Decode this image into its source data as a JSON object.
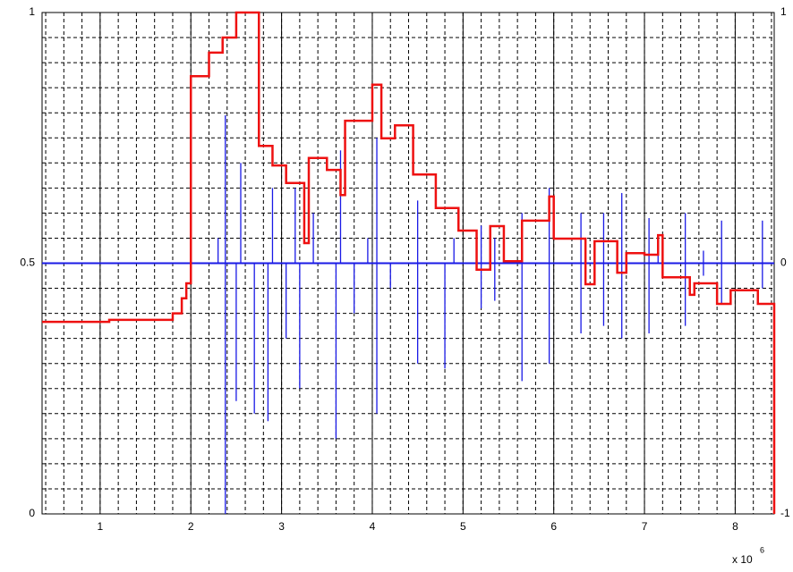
{
  "chart_data": {
    "type": "step-stem",
    "x_label": "x 10",
    "x_label_exponent": "6",
    "xlim": [
      0.36,
      8.43
    ],
    "xticks": [
      1,
      2,
      3,
      4,
      5,
      6,
      7,
      8
    ],
    "ylim": [
      0,
      1
    ],
    "yticks": [
      0,
      0.5,
      1
    ],
    "y2lim": [
      -1,
      1
    ],
    "y2ticks": [
      -1,
      0,
      1
    ],
    "grid": true,
    "minor_grid": true,
    "series": [
      {
        "type": "step",
        "color": "#ee1111",
        "x": [
          0.36,
          1.1,
          1.8,
          1.9,
          1.95,
          2.0,
          2.2,
          2.35,
          2.5,
          2.75,
          2.9,
          3.05,
          3.25,
          3.3,
          3.5,
          3.65,
          3.7,
          4.0,
          4.1,
          4.25,
          4.45,
          4.7,
          4.95,
          5.15,
          5.3,
          5.45,
          5.65,
          5.95,
          6.0,
          6.35,
          6.45,
          6.7,
          6.8,
          7.0,
          7.15,
          7.2,
          7.5,
          7.55,
          7.8,
          7.95,
          8.25,
          8.43
        ],
        "values": [
          0.383,
          0.387,
          0.4,
          0.43,
          0.46,
          0.873,
          0.92,
          0.95,
          1.0,
          0.734,
          0.695,
          0.66,
          0.54,
          0.71,
          0.686,
          0.636,
          0.784,
          0.856,
          0.749,
          0.775,
          0.677,
          0.61,
          0.565,
          0.487,
          0.574,
          0.504,
          0.585,
          0.633,
          0.549,
          0.458,
          0.544,
          0.481,
          0.52,
          0.517,
          0.556,
          0.472,
          0.437,
          0.46,
          0.419,
          0.446,
          0.419,
          0
        ]
      },
      {
        "type": "stem",
        "axis": "y2",
        "color": "#1a1ae6",
        "x": [
          2.3,
          2.38,
          2.38,
          2.5,
          2.55,
          2.7,
          2.85,
          2.9,
          3.05,
          3.15,
          3.2,
          3.35,
          3.6,
          3.65,
          3.8,
          3.95,
          4.05,
          4.05,
          4.2,
          4.5,
          4.5,
          4.8,
          4.9,
          5.2,
          5.2,
          5.35,
          5.35,
          5.65,
          5.65,
          5.95,
          5.95,
          6.3,
          6.3,
          6.55,
          6.55,
          6.75,
          6.75,
          7.05,
          7.05,
          7.15,
          7.45,
          7.45,
          7.65,
          7.65,
          7.85,
          7.85,
          8.3,
          8.3
        ],
        "values": [
          0.1,
          0.59,
          -1.0,
          -0.55,
          0.4,
          -0.6,
          -0.63,
          0.3,
          -0.3,
          0.3,
          -0.5,
          0.2,
          -0.7,
          0.45,
          -0.2,
          0.1,
          -0.6,
          0.5,
          -0.1,
          0.25,
          -0.4,
          -0.42,
          0.1,
          -0.18,
          0.15,
          -0.15,
          0.1,
          0.2,
          -0.47,
          0.3,
          -0.4,
          0.2,
          -0.28,
          0.2,
          -0.25,
          0.28,
          -0.3,
          0.18,
          -0.28,
          0.1,
          0.2,
          -0.25,
          0.05,
          -0.05,
          0.17,
          -0.16,
          0.17,
          -0.1
        ]
      }
    ]
  }
}
